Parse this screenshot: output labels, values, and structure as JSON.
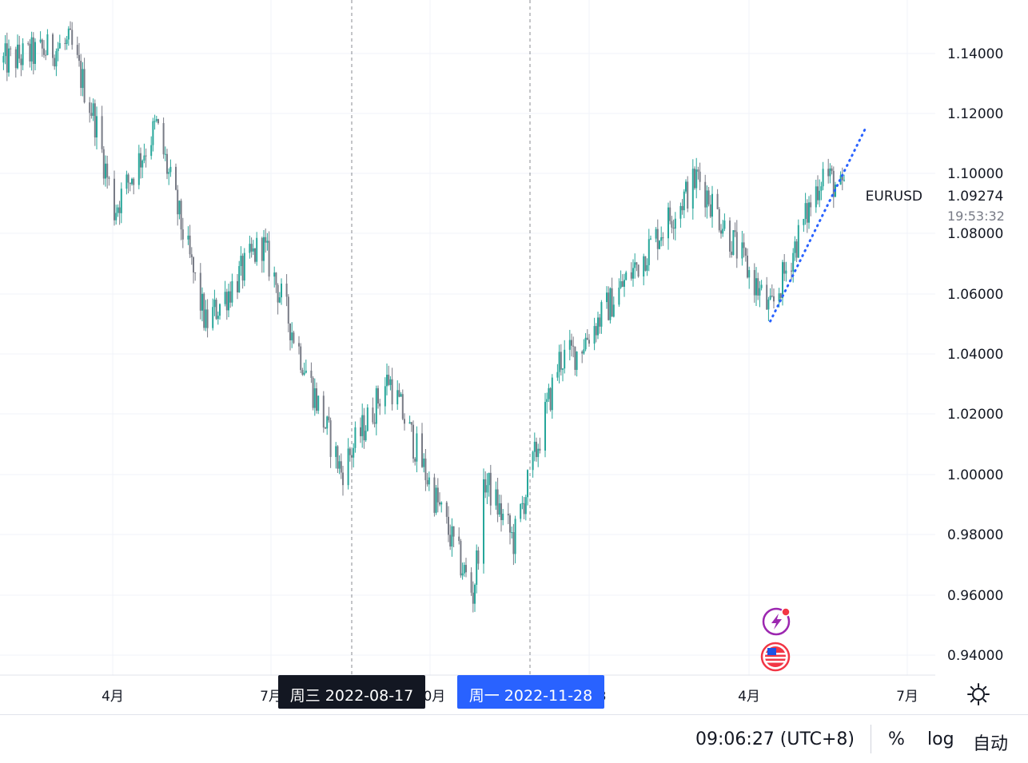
{
  "chart_data": {
    "type": "candlestick",
    "symbol": "EURUSD",
    "last_price": "1.09274",
    "countdown": "19:53:32",
    "y_ticks": [
      "1.14000",
      "1.12000",
      "1.10000",
      "1.08000",
      "1.06000",
      "1.04000",
      "1.02000",
      "1.00000",
      "0.98000",
      "0.96000",
      "0.94000"
    ],
    "x_ticks": [
      "4月",
      "7月",
      "10月",
      "2023",
      "4月",
      "7月"
    ],
    "ylim": [
      0.9355,
      1.153
    ],
    "grid": true,
    "up_color": "#26a69a",
    "down_color": "#787b86",
    "crosshair_labels": [
      {
        "name": "date-label-1",
        "text": "周三 2022-08-17",
        "color": "#131722"
      },
      {
        "name": "date-label-2",
        "text": "周一 2022-11-28",
        "color": "#2962ff"
      }
    ],
    "close_path": [
      [
        "2022-01-01",
        1.137
      ],
      [
        "2022-02-10",
        1.143
      ],
      [
        "2022-02-24",
        1.118
      ],
      [
        "2022-03-07",
        1.088
      ],
      [
        "2022-03-31",
        1.116
      ],
      [
        "2022-04-28",
        1.05
      ],
      [
        "2022-05-30",
        1.077
      ],
      [
        "2022-07-14",
        1.001
      ],
      [
        "2022-08-10",
        1.032
      ],
      [
        "2022-09-27",
        0.96
      ],
      [
        "2022-10-04",
        0.998
      ],
      [
        "2022-10-20",
        0.978
      ],
      [
        "2022-11-15",
        1.038
      ],
      [
        "2022-11-25",
        1.041
      ],
      [
        "2023-02-02",
        1.099
      ],
      [
        "2023-03-15",
        1.054
      ],
      [
        "2023-04-14",
        1.101
      ],
      [
        "2023-04-26",
        1.093
      ]
    ],
    "trendline": {
      "start": [
        "2023-03-15",
        1.051
      ],
      "end": [
        "2023-05-08",
        1.115
      ],
      "color": "#2962ff",
      "style": "dotted"
    },
    "event_icons": [
      "flash-icon",
      "us-flag-icon"
    ]
  },
  "bottom_bar": {
    "time": "09:06:27 (UTC+8)",
    "percent": "%",
    "log": "log",
    "auto": "自动"
  }
}
